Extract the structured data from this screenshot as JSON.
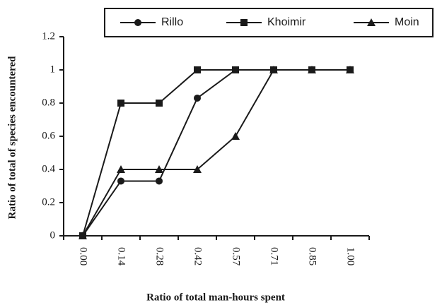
{
  "chart_data": {
    "type": "line",
    "legend": "top",
    "y_label": "Ratio of total of species encountered",
    "x_label": "Ratio of total man-hours spent",
    "categories": [
      "0.00",
      "0.14",
      "0.28",
      "0.42",
      "0.57",
      "0.71",
      "0.85",
      "1.00"
    ],
    "series": [
      {
        "name": "Rillo",
        "color": "#1a1a1a",
        "marker": "circle",
        "values": [
          0,
          0.33,
          0.33,
          0.83,
          1,
          1,
          1,
          1
        ]
      },
      {
        "name": "Khoimir",
        "color": "#1a1a1a",
        "marker": "square",
        "values": [
          0,
          0.8,
          0.8,
          1,
          1,
          1,
          1,
          1
        ]
      },
      {
        "name": "Moin",
        "color": "#1a1a1a",
        "marker": "triangle",
        "values": [
          0,
          0.4,
          0.4,
          0.4,
          0.6,
          1,
          1,
          1
        ]
      }
    ],
    "ylim": [
      0,
      1.2
    ],
    "yticks": [
      0,
      0.2,
      0.4,
      0.6,
      0.8,
      1,
      1.2
    ]
  }
}
